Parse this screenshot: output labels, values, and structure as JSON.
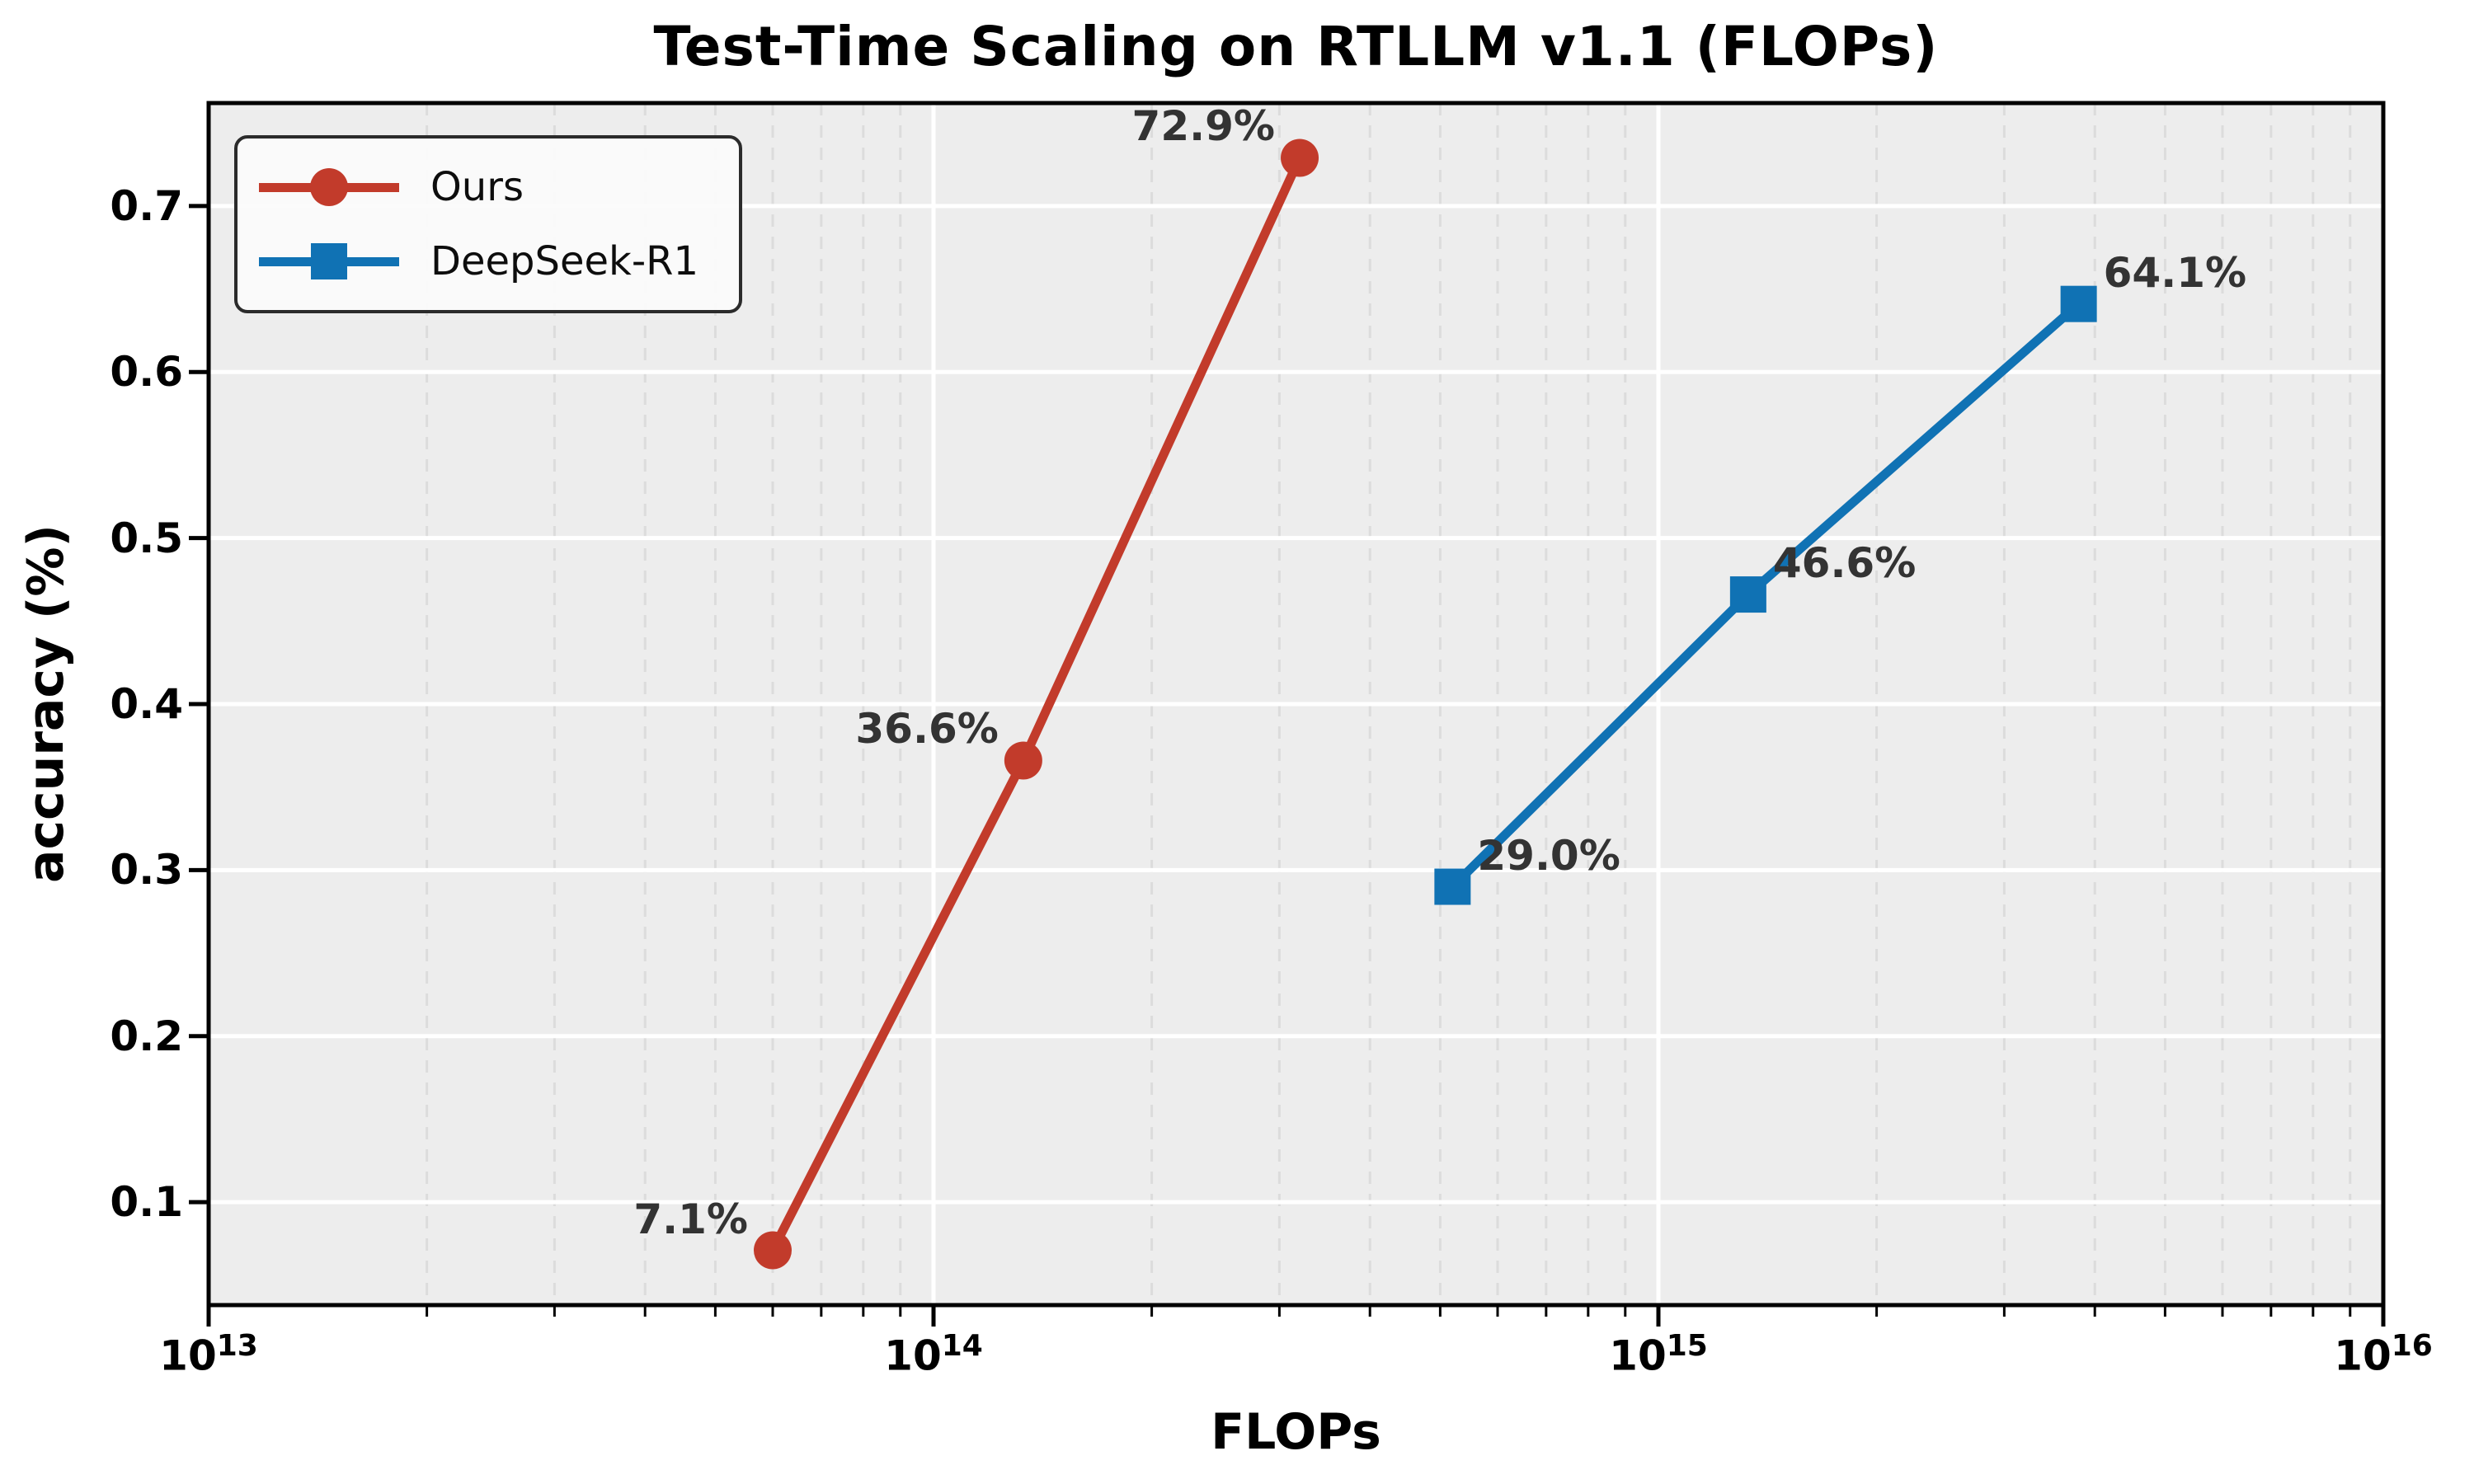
{
  "chart_data": {
    "type": "line",
    "title": "Test-Time Scaling on RTLLM v1.1 (FLOPs)",
    "xlabel": "FLOPs",
    "ylabel": "accuracy (%)",
    "x_scale": "log",
    "xlim": [
      10000000000000.0,
      1e+16
    ],
    "ylim": [
      0.038,
      0.762
    ],
    "x_tick_exponents": [
      13,
      14,
      15,
      16
    ],
    "y_ticks": [
      0.1,
      0.2,
      0.3,
      0.4,
      0.5,
      0.6,
      0.7
    ],
    "grid": {
      "horizontal_major": "solid-white",
      "vertical_major": "solid-white",
      "vertical_minor": "dashed-light-gray"
    },
    "legend": {
      "position": "upper-left",
      "entries": [
        {
          "label": "Ours",
          "marker": "circle",
          "color": "#c23b2b"
        },
        {
          "label": "DeepSeek-R1",
          "marker": "square",
          "color": "#1072b4"
        }
      ]
    },
    "series": [
      {
        "name": "Ours",
        "color": "#c23b2b",
        "marker": "circle",
        "points": [
          {
            "x": 60000000000000.0,
            "y": 0.071,
            "label": "7.1%",
            "label_side": "left"
          },
          {
            "x": 133000000000000.0,
            "y": 0.366,
            "label": "36.6%",
            "label_side": "left"
          },
          {
            "x": 320000000000000.0,
            "y": 0.729,
            "label": "72.9%",
            "label_side": "left"
          }
        ]
      },
      {
        "name": "DeepSeek-R1",
        "color": "#1072b4",
        "marker": "square",
        "points": [
          {
            "x": 520000000000000.0,
            "y": 0.29,
            "label": "29.0%",
            "label_side": "right"
          },
          {
            "x": 1330000000000000.0,
            "y": 0.466,
            "label": "46.6%",
            "label_side": "right"
          },
          {
            "x": 3800000000000000.0,
            "y": 0.641,
            "label": "64.1%",
            "label_side": "right"
          }
        ]
      }
    ],
    "style": {
      "plot_background": "#ededed",
      "grid_major_color": "#ffffff",
      "grid_minor_color": "#dcdcdc",
      "spine_color": "#000000",
      "tick_color": "#000000",
      "annotation_color": "#333333"
    }
  }
}
